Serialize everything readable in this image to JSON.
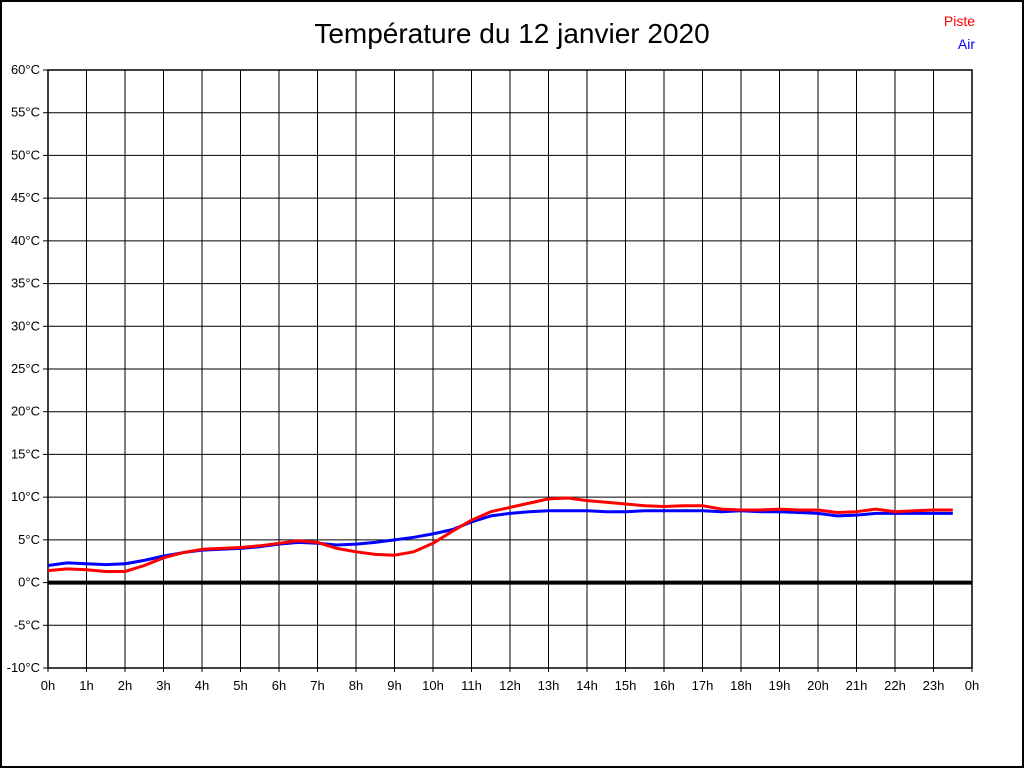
{
  "title": "Température du 12 janvier 2020",
  "legend": [
    {
      "label": "Piste",
      "color": "#ff0000"
    },
    {
      "label": "Air",
      "color": "#0000ff"
    }
  ],
  "chart_data": {
    "type": "line",
    "title": "Température du 12 janvier 2020",
    "xlabel": "",
    "ylabel": "",
    "xlim": [
      0,
      24
    ],
    "ylim": [
      -10,
      60
    ],
    "y_step": 5,
    "grid": true,
    "legend_position": "top-right",
    "zero_line": {
      "value": 0,
      "color": "#000000",
      "width": 4
    },
    "x_tick_labels": [
      "0h",
      "1h",
      "2h",
      "3h",
      "4h",
      "5h",
      "6h",
      "7h",
      "8h",
      "9h",
      "10h",
      "11h",
      "12h",
      "13h",
      "14h",
      "15h",
      "16h",
      "17h",
      "18h",
      "19h",
      "20h",
      "21h",
      "22h",
      "23h",
      "0h"
    ],
    "y_tick_labels": [
      "60°C",
      "55°C",
      "50°C",
      "45°C",
      "40°C",
      "35°C",
      "30°C",
      "25°C",
      "20°C",
      "15°C",
      "10°C",
      "5°C",
      "0°C",
      "-5°C",
      "-10°C"
    ],
    "x": [
      0,
      0.5,
      1,
      1.5,
      2,
      2.5,
      3,
      3.5,
      4,
      4.5,
      5,
      5.5,
      6,
      6.5,
      7,
      7.5,
      8,
      8.5,
      9,
      9.5,
      10,
      10.5,
      11,
      11.5,
      12,
      12.5,
      13,
      13.5,
      14,
      14.5,
      15,
      15.5,
      16,
      16.5,
      17,
      17.5,
      18,
      18.5,
      19,
      19.5,
      20,
      20.5,
      21,
      21.5,
      22,
      22.5,
      23,
      23.5
    ],
    "series": [
      {
        "name": "Air",
        "color": "#0000ff",
        "values": [
          2.0,
          2.3,
          2.2,
          2.1,
          2.2,
          2.6,
          3.1,
          3.5,
          3.8,
          3.9,
          4.0,
          4.2,
          4.5,
          4.7,
          4.6,
          4.4,
          4.5,
          4.7,
          5.0,
          5.3,
          5.7,
          6.2,
          7.1,
          7.8,
          8.1,
          8.3,
          8.4,
          8.4,
          8.4,
          8.3,
          8.3,
          8.4,
          8.4,
          8.4,
          8.4,
          8.3,
          8.4,
          8.3,
          8.3,
          8.2,
          8.1,
          7.8,
          7.9,
          8.1,
          8.1,
          8.1,
          8.1,
          8.1
        ]
      },
      {
        "name": "Piste",
        "color": "#ff0000",
        "values": [
          1.4,
          1.6,
          1.5,
          1.3,
          1.3,
          2.0,
          2.9,
          3.5,
          3.9,
          4.0,
          4.1,
          4.3,
          4.6,
          4.9,
          4.7,
          4.0,
          3.6,
          3.3,
          3.2,
          3.6,
          4.6,
          6.0,
          7.3,
          8.3,
          8.8,
          9.3,
          9.8,
          9.9,
          9.6,
          9.4,
          9.2,
          9.0,
          8.9,
          9.0,
          9.0,
          8.6,
          8.5,
          8.5,
          8.6,
          8.5,
          8.5,
          8.2,
          8.3,
          8.6,
          8.3,
          8.4,
          8.5,
          8.5
        ]
      }
    ]
  }
}
